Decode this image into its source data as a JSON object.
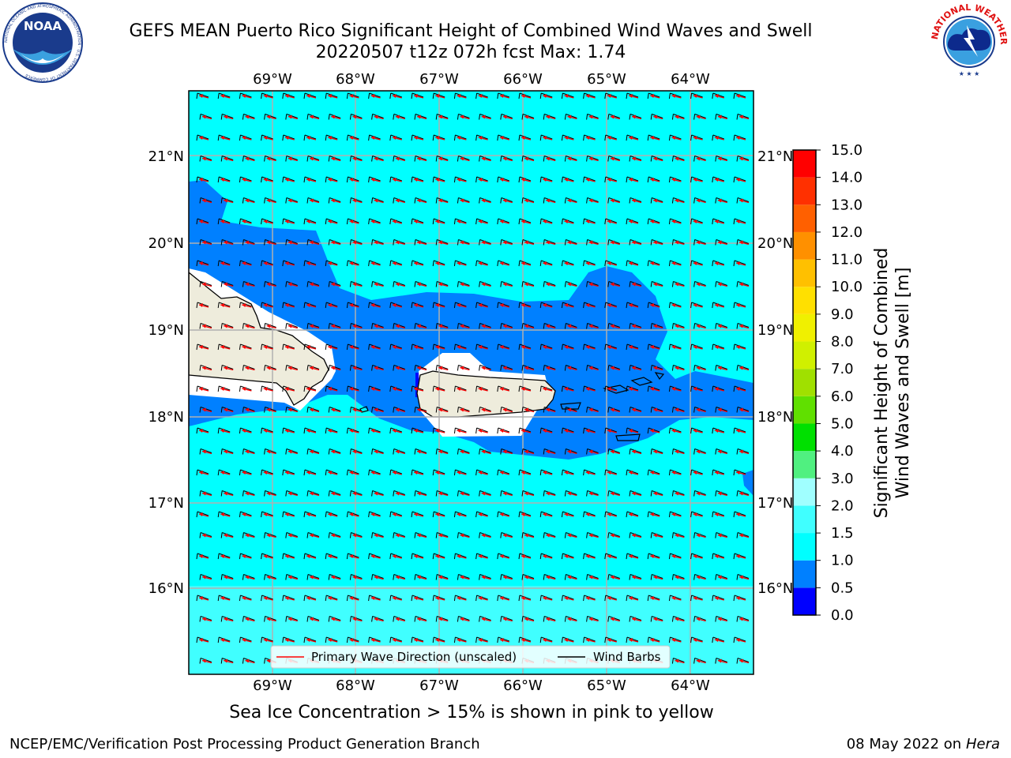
{
  "title_line1": "GEFS MEAN Puerto Rico Significant Height of Combined Wind Waves and Swell",
  "title_line2": "20220507 t12z 072h fcst   Max: 1.74",
  "logo_left": "NOAA",
  "logo_left_ring": "NATIONAL OCEANIC AND ATMOSPHERIC ADMINISTRATION · U.S. DEPARTMENT OF COMMERCE",
  "logo_right_ring": "NATIONAL WEATHER SERVICE",
  "lon_labels": [
    "69°W",
    "68°W",
    "67°W",
    "66°W",
    "65°W",
    "64°W"
  ],
  "lat_labels": [
    "21°N",
    "20°N",
    "19°N",
    "18°N",
    "17°N",
    "16°N"
  ],
  "legend": {
    "wave_label": "Primary Wave Direction (unscaled)",
    "barb_label": "Wind Barbs"
  },
  "colorbar": {
    "label_line1": "Significant Height of Combined",
    "label_line2": "Wind Waves and Swell [m]",
    "ticks": [
      "0.0",
      "0.5",
      "1.0",
      "1.5",
      "2.0",
      "3.0",
      "4.0",
      "5.0",
      "6.0",
      "7.0",
      "8.0",
      "9.0",
      "10.0",
      "11.0",
      "12.0",
      "13.0",
      "14.0",
      "15.0"
    ],
    "colors": [
      "#0000ff",
      "#0080ff",
      "#00ffff",
      "#40ffff",
      "#a0ffff",
      "#50f080",
      "#00e000",
      "#60e000",
      "#a0e000",
      "#d0f000",
      "#f0f000",
      "#ffe000",
      "#ffc000",
      "#ff9000",
      "#ff6000",
      "#ff3000",
      "#ff0000"
    ]
  },
  "colors": {
    "sea_calm": "#0080ff",
    "sea_main": "#00ffff",
    "sea_light": "#40ffff",
    "land": "#eeecdc",
    "wave_arrow": "#ff0000"
  },
  "note": "Sea Ice Concentration > 15% is shown in pink to yellow",
  "footer_left": "NCEP/EMC/Verification Post Processing Product Generation Branch",
  "footer_date": "08 May 2022 on",
  "footer_host": "Hera"
}
